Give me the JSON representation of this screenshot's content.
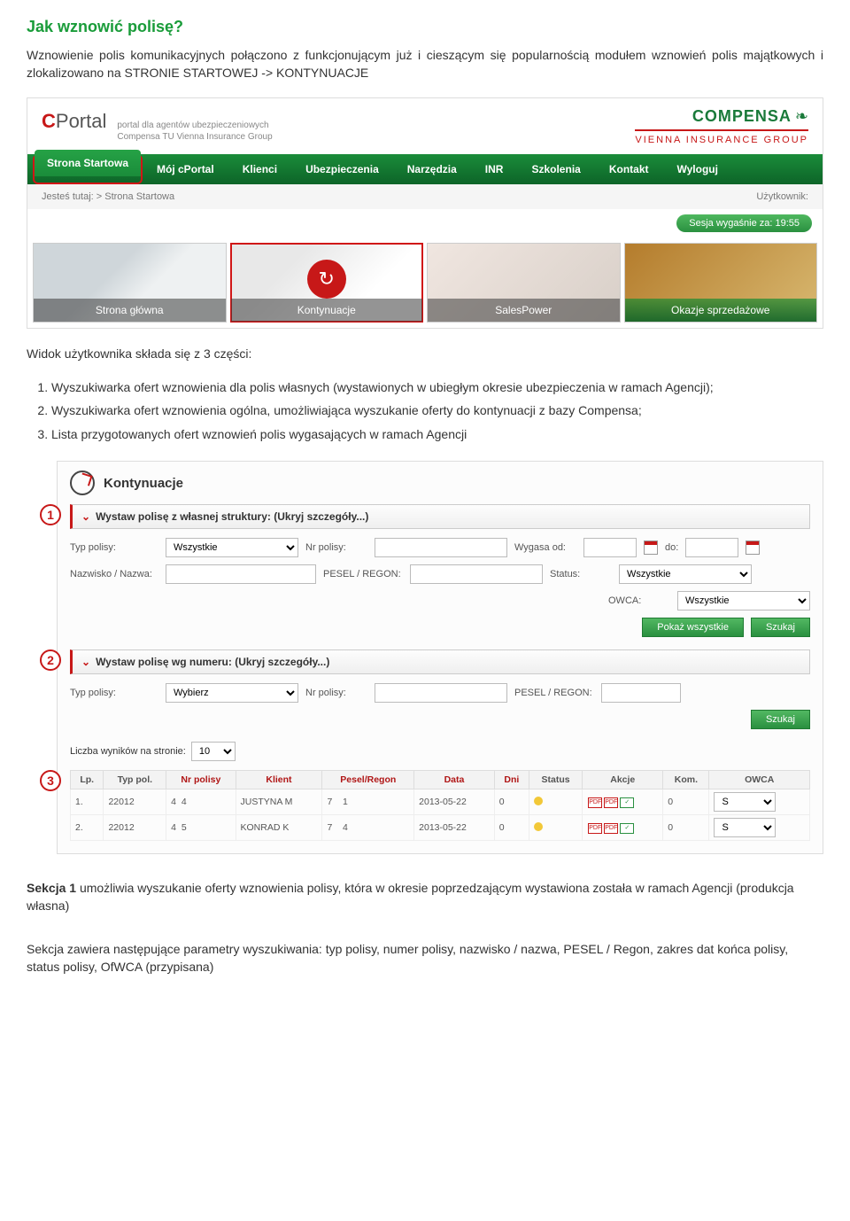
{
  "title": "Jak wznowić polisę?",
  "intro": "Wznowienie polis komunikacyjnych połączono z  funkcjonującym już i cieszącym się popularnością modułem wznowień polis majątkowych i zlokalizowano na STRONIE STARTOWEJ -> KONTYNUACJE",
  "portal": {
    "logo_c": "C",
    "logo_rest": "Portal",
    "logo_sub1": "portal dla agentów ubezpieczeniowych",
    "logo_sub2": "Compensa TU Vienna Insurance Group",
    "brand": "COMPENSA",
    "brand_sub": "VIENNA INSURANCE GROUP",
    "nav": [
      "Strona Startowa",
      "Mój cPortal",
      "Klienci",
      "Ubezpieczenia",
      "Narzędzia",
      "INR",
      "Szkolenia",
      "Kontakt",
      "Wyloguj"
    ],
    "crumb_label": "Jesteś tutaj:",
    "crumb_path": "> Strona Startowa",
    "user_label": "Użytkownik:",
    "session": "Sesja wygaśnie za: 19:55",
    "tiles": [
      "Strona główna",
      "Kontynuacje",
      "SalesPower",
      "Okazje sprzedażowe"
    ]
  },
  "mid": "Widok użytkownika składa się z 3 części:",
  "list": [
    "Wyszukiwarka ofert wznowienia dla polis własnych (wystawionych w ubiegłym okresie ubezpieczenia w ramach Agencji);",
    "Wyszukiwarka ofert wznowienia ogólna, umożliwiająca wyszukanie oferty do kontynuacji z bazy Compensa;",
    "Lista przygotowanych ofert wznowień polis wygasających w ramach Agencji"
  ],
  "kont": {
    "title": "Kontynuacje",
    "sec1": "Wystaw polisę z własnej struktury: (Ukryj szczegóły...)",
    "sec2": "Wystaw polisę wg numeru: (Ukryj szczegóły...)",
    "labels": {
      "typ": "Typ polisy:",
      "nrp": "Nr polisy:",
      "wygasa": "Wygasa od:",
      "do": "do:",
      "nazw": "Nazwisko / Nazwa:",
      "pesel": "PESEL / REGON:",
      "status": "Status:",
      "owca": "OWCA:",
      "wybierz": "Wybierz",
      "wszystkie": "Wszystkie",
      "results": "Liczba wyników na stronie:",
      "results_n": "10"
    },
    "btns": {
      "pokaz": "Pokaż wszystkie",
      "szukaj": "Szukaj"
    },
    "th": [
      "Lp.",
      "Typ pol.",
      "Nr polisy",
      "Klient",
      "Pesel/Regon",
      "Data",
      "Dni",
      "Status",
      "Akcje",
      "Kom.",
      "OWCA"
    ],
    "rows": [
      {
        "lp": "1.",
        "typ": "22012",
        "sub": "4",
        "nr": "4",
        "klient": "JUSTYNA M",
        "pesel": "7",
        "extra": "1",
        "data": "2013-05-22",
        "dni": "0",
        "kom": "0",
        "owca": "S"
      },
      {
        "lp": "2.",
        "typ": "22012",
        "sub": "4",
        "nr": "5",
        "klient": "KONRAD K",
        "pesel": "7",
        "extra": "4",
        "data": "2013-05-22",
        "dni": "0",
        "kom": "0",
        "owca": "S"
      }
    ]
  },
  "foot1a": "Sekcja 1",
  "foot1b": " umożliwia wyszukanie oferty wznowienia polisy, która w okresie poprzedzającym wystawiona została w ramach Agencji (produkcja własna)",
  "foot2": "Sekcja zawiera następujące parametry wyszukiwania: typ polisy, numer polisy, nazwisko / nazwa, PESEL / Regon, zakres dat końca polisy, status polisy, OfWCA (przypisana)"
}
